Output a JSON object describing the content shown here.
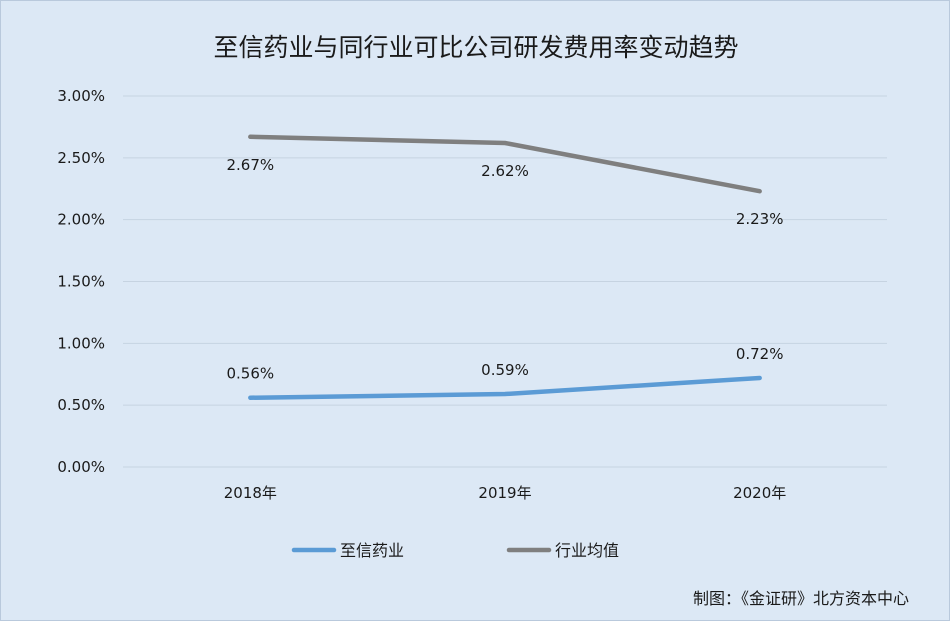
{
  "chart_data": {
    "type": "line",
    "title": "至信药业与同行业可比公司研发费用率变动趋势",
    "categories": [
      "2018年",
      "2019年",
      "2020年"
    ],
    "series": [
      {
        "name": "至信药业",
        "values": [
          0.56,
          0.59,
          0.72
        ],
        "labels": [
          "0.56%",
          "0.59%",
          "0.72%"
        ],
        "color": "#5b9bd5"
      },
      {
        "name": "行业均值",
        "values": [
          2.67,
          2.62,
          2.23
        ],
        "labels": [
          "2.67%",
          "2.62%",
          "2.23%"
        ],
        "color": "#7f7f7f"
      }
    ],
    "ylim": [
      0,
      3.0
    ],
    "y_ticks": [
      "0.00%",
      "0.50%",
      "1.00%",
      "1.50%",
      "2.00%",
      "2.50%",
      "3.00%"
    ],
    "grid": true,
    "legend_position": "bottom"
  },
  "source_note": "制图：《金证研》北方资本中心",
  "colors": {
    "background": "#dce8f5",
    "gridline": "#c6d3e1"
  }
}
